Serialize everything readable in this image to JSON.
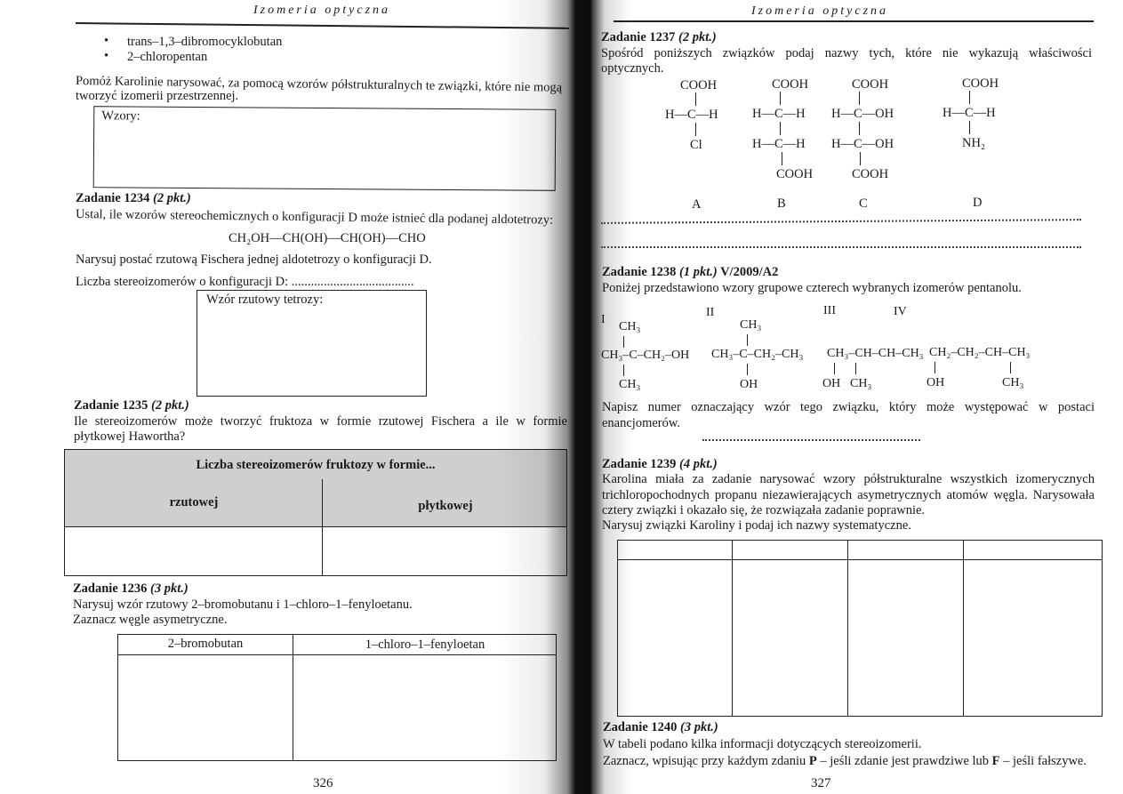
{
  "left_page": {
    "header": "Izomeria optyczna",
    "bullets": [
      "trans–1,3–dibromocyklobutan",
      "2–chloropentan"
    ],
    "intro_line1": "Pomóż Karolinie narysować, za pomocą wzorów półstrukturalnych te związki, które nie mogą",
    "intro_line2": "tworzyć izomerii przestrzennej.",
    "wzory_box_label": "Wzory:",
    "task_1234": {
      "title": "Zadanie 1234",
      "points": "(2 pkt.)",
      "line1": "Ustal, ile wzorów stereochemicznych o konfiguracji D może istnieć dla podanej aldotetrozy:",
      "formula": "CH₂OH—CH(OH)—CH(OH)—CHO",
      "line2": "Narysuj postać rzutową Fischera jednej aldotetrozy o konfiguracji D.",
      "line3": "Liczba stereoizomerów o konfiguracji D: ......................................",
      "box_label": "Wzór rzutowy tetrozy:"
    },
    "task_1235": {
      "title": "Zadanie 1235",
      "points": "(2 pkt.)",
      "line1": "Ile stereoizomerów może tworzyć fruktoza w formie rzutowej Fischera a ile w formie",
      "line2": "płytkowej Hawortha?",
      "table_header": "Liczba stereoizomerów fruktozy w formie...",
      "col1": "rzutowej",
      "col2": "płytkowej"
    },
    "task_1236": {
      "title": "Zadanie 1236",
      "points": "(3 pkt.)",
      "line1": "Narysuj wzór rzutowy 2–bromobutanu i 1–chloro–1–fenyloetanu.",
      "line2": "Zaznacz węgle asymetryczne.",
      "col1": "2–bromobutan",
      "col2": "1–chloro–1–fenyloetan"
    },
    "page_number": "326"
  },
  "right_page": {
    "header": "Izomeria optyczna",
    "task_1237": {
      "title": "Zadanie 1237",
      "points": "(2 pkt.)",
      "line1": "Spośród poniższych związków podaj nazwy tych, które nie wykazują właściwości",
      "line2": "optycznych.",
      "structures": [
        {
          "label": "A",
          "top": "COOH",
          "row1": "H—C—H",
          "bottom": "Cl"
        },
        {
          "label": "B",
          "top": "COOH",
          "row1": "H—C—H",
          "row2": "H—C—H",
          "bottom": "COOH"
        },
        {
          "label": "C",
          "top": "COOH",
          "row1": "H—C—OH",
          "row2": "H—C—OH",
          "bottom": "COOH"
        },
        {
          "label": "D",
          "top": "COOH",
          "row1": "H—C—H",
          "bottom": "NH₂"
        }
      ]
    },
    "task_1238": {
      "title": "Zadanie 1238",
      "points": "(1 pkt.)",
      "source": "V/2009/A2",
      "line1": "Poniżej przedstawiono wzory grupowe czterech wybranych izomerów pentanolu.",
      "formulas": [
        {
          "numeral": "I",
          "top": "CH₃",
          "main": "CH₃–C–CH₂–OH",
          "bottom": "CH₃"
        },
        {
          "numeral": "II",
          "top": "CH₃",
          "main": "CH₃–C–CH₂–CH₃",
          "bottom": "OH"
        },
        {
          "numeral": "III",
          "main": "CH₃–CH–CH–CH₃",
          "bottom1": "OH",
          "bottom2": "CH₃"
        },
        {
          "numeral": "IV",
          "main": "CH₂–CH₂–CH–CH₃",
          "bottom1": "OH",
          "bottom2": "CH₃"
        }
      ],
      "question_line1": "Napisz numer oznaczający wzór tego związku, który może występować w postaci",
      "question_line2": "enancjomerów."
    },
    "task_1239": {
      "title": "Zadanie 1239",
      "points": "(4 pkt.)",
      "line1": "Karolina miała za zadanie narysować wzory półstrukturalne wszystkich izomerycznych",
      "line2": "trichloropochodnych propanu niezawierających asymetrycznych atomów węgla. Narysowała",
      "line3": "cztery związki i okazało się, że rozwiązała zadanie poprawnie.",
      "line4": "Narysuj związki Karoliny i podaj ich nazwy systematyczne."
    },
    "task_1240": {
      "title": "Zadanie 1240",
      "points": "(3 pkt.)",
      "line1": "W tabeli podano kilka informacji dotyczących stereoizomerii.",
      "line2_a": "Zaznacz, wpisując przy każdym zdaniu ",
      "line2_p": "P",
      "line2_b": " – jeśli zdanie jest prawdziwe lub ",
      "line2_f": "F",
      "line2_c": " – jeśli fałszywe."
    },
    "page_number": "327"
  }
}
